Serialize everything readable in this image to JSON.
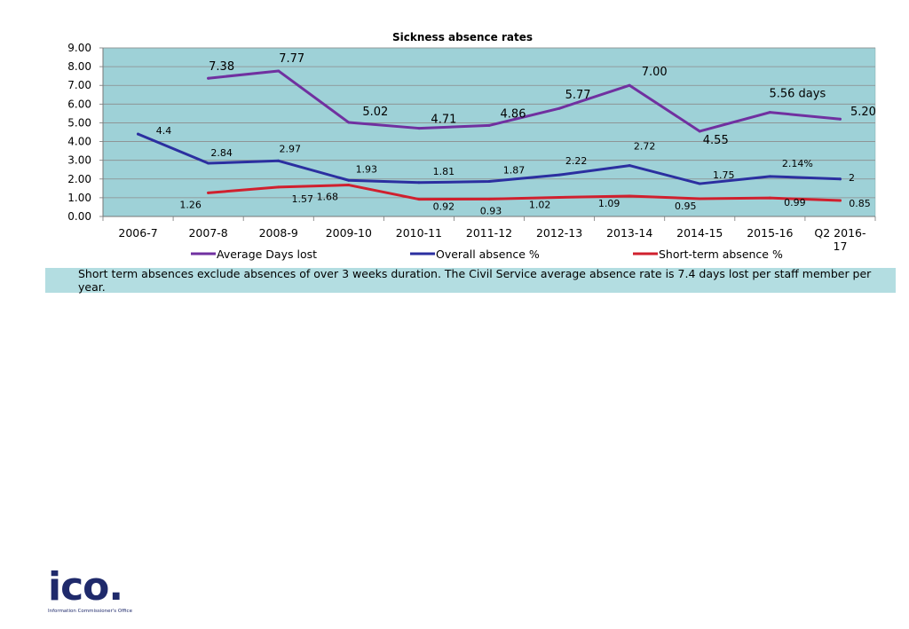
{
  "chart_data": {
    "type": "line",
    "title": "Sickness absence rates",
    "categories": [
      "2006-7",
      "2007-8",
      "2008-9",
      "2009-10",
      "2010-11",
      "2011-12",
      "2012-13",
      "2013-14",
      "2014-15",
      "2015-16",
      "Q2 2016-17"
    ],
    "ylim": [
      0,
      9
    ],
    "yticks": [
      "0.00",
      "1.00",
      "2.00",
      "3.00",
      "4.00",
      "5.00",
      "6.00",
      "7.00",
      "8.00",
      "9.00"
    ],
    "grid": true,
    "legend": "bottom",
    "series": [
      {
        "name": "Average Days lost",
        "color": "#7030a0",
        "values": [
          null,
          7.38,
          7.77,
          5.02,
          4.71,
          4.86,
          5.77,
          7.0,
          4.55,
          5.56,
          5.2
        ],
        "labels": [
          "",
          "7.38",
          "7.77",
          "5.02",
          "4.71",
          "4.86",
          "5.77",
          "7.00",
          "4.55",
          "5.56 days",
          "5.20"
        ]
      },
      {
        "name": "Overall absence %",
        "color": "#2b2fa0",
        "values": [
          4.4,
          2.84,
          2.97,
          1.93,
          1.81,
          1.87,
          2.22,
          2.72,
          1.75,
          2.14,
          2.0
        ],
        "labels": [
          "4.4",
          "2.84",
          "2.97",
          "1.93",
          "1.81",
          "1.87",
          "2.22",
          "2.72",
          "1.75",
          "2.14%",
          "2"
        ]
      },
      {
        "name": "Short-term absence %",
        "color": "#d0202e",
        "values": [
          null,
          1.26,
          1.57,
          1.68,
          0.92,
          0.93,
          1.02,
          1.09,
          0.95,
          0.99,
          0.85
        ],
        "labels": [
          "",
          "1.26",
          "1.57",
          "1.68",
          "0.92",
          "0.93",
          "1.02",
          "1.09",
          "0.95",
          "0.99",
          "0.85"
        ]
      }
    ]
  },
  "footnote": "Short term absences exclude absences of over 3 weeks duration. The Civil Service average absence rate is 7.4 days lost per staff member per year.",
  "logo": {
    "word": "ico.",
    "subtitle": "Information Commissioner's Office"
  }
}
